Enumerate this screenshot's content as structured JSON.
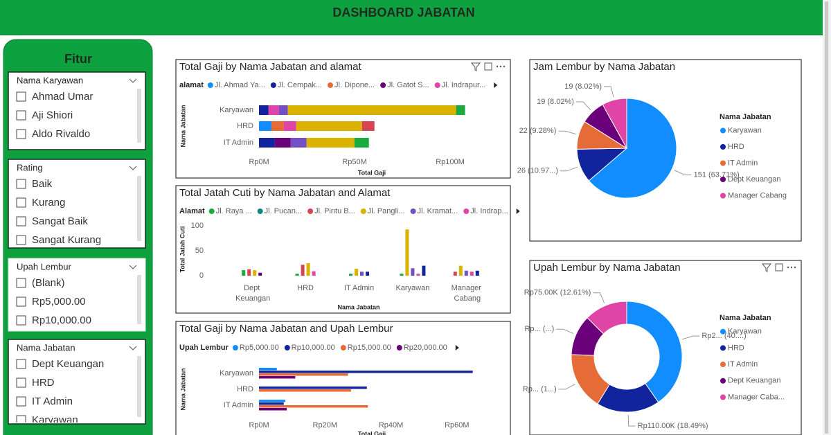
{
  "header": {
    "title": "DASHBOARD JABATAN"
  },
  "sidebar": {
    "title": "Fitur",
    "slicers": [
      {
        "title": "Nama Karyawan",
        "items": [
          "Ahmad Umar",
          "Aji Shiori",
          "Aldo Rivaldo"
        ]
      },
      {
        "title": "Rating",
        "items": [
          "Baik",
          "Kurang",
          "Sangat Baik",
          "Sangat Kurang"
        ]
      },
      {
        "title": "Upah Lembur",
        "items": [
          "(Blank)",
          "Rp5,000.00",
          "Rp10,000.00"
        ]
      },
      {
        "title": "Nama Jabatan",
        "items": [
          "Dept Keuangan",
          "HRD",
          "IT Admin",
          "Karyawan"
        ]
      }
    ]
  },
  "chart_data": [
    {
      "type": "bar",
      "orientation": "horizontal",
      "stacked": true,
      "title": "Total Gaji by Nama Jabatan and alamat",
      "legend_title": "alamat",
      "x_label": "Total Gaji",
      "y_label": "Nama Jabatan",
      "categories": [
        "Karyawan",
        "HRD",
        "IT Admin"
      ],
      "series": [
        {
          "name": "Jl. Ahmad Ya...",
          "color": "#118dff",
          "values": [
            null,
            6500000,
            null
          ]
        },
        {
          "name": "Jl. Cempak...",
          "color": "#12239e",
          "values": [
            5000000,
            null,
            8300000
          ]
        },
        {
          "name": "Jl. Dipone...",
          "color": "#e66c37",
          "values": [
            null,
            6500000,
            null
          ]
        },
        {
          "name": "Jl. Gatot S...",
          "color": "#6b007b",
          "values": [
            null,
            null,
            8300000
          ]
        },
        {
          "name": "Jl. Indrapur...",
          "color": "#e044a7",
          "values": [
            5400000,
            6500000,
            null
          ]
        },
        {
          "name": null,
          "color": "#744ec2",
          "values": [
            4700000,
            null,
            8300000
          ]
        },
        {
          "name": null,
          "color": "#d9b300",
          "values": [
            88000000,
            34400000,
            25000000
          ]
        },
        {
          "name": null,
          "color": "#d64550",
          "values": [
            null,
            6500000,
            null
          ]
        },
        {
          "name": null,
          "color": "#1aab40",
          "values": [
            4700000,
            null,
            7600000
          ]
        }
      ],
      "xlim": [
        0,
        125000000
      ],
      "xticks": [
        {
          "value": 0,
          "label": "Rp0M"
        },
        {
          "value": 50000000,
          "label": "Rp50M"
        },
        {
          "value": 100000000,
          "label": "Rp100M"
        }
      ]
    },
    {
      "type": "bar",
      "orientation": "vertical",
      "stacked": false,
      "title": "Total Jatah Cuti by Nama Jabatan and Alamat",
      "legend_title": "Alamat",
      "x_label": "Nama Jabatan",
      "y_label": "Total Jatah Cuti",
      "categories": [
        "Dept Keuangan",
        "HRD",
        "IT Admin",
        "Karyawan",
        "Manager Cabang"
      ],
      "series": [
        {
          "name": "Jl. Raya ...",
          "color": "#1aab40",
          "values": [
            11,
            4,
            4,
            4,
            null
          ]
        },
        {
          "name": "Jl. Pucan...",
          "color": "#15857f",
          "values": [
            null,
            null,
            null,
            null,
            null
          ]
        },
        {
          "name": "Jl. Pintu B...",
          "color": "#d64550",
          "values": [
            13,
            22,
            null,
            null,
            8
          ]
        },
        {
          "name": "Jl. Pangli...",
          "color": "#d9b300",
          "values": [
            11,
            25,
            14,
            93,
            20
          ]
        },
        {
          "name": "Jl. Kramat...",
          "color": "#744ec2",
          "values": [
            null,
            null,
            8,
            15,
            10
          ]
        },
        {
          "name": "Jl. Indrap...",
          "color": "#e044a7",
          "values": [
            null,
            9,
            null,
            4,
            8
          ]
        },
        {
          "name": null,
          "color": "#12239e",
          "values": [
            null,
            null,
            8,
            20,
            10
          ]
        },
        {
          "name": null,
          "color": "#6b007b",
          "values": [
            6,
            null,
            null,
            null,
            null
          ]
        }
      ],
      "ylim": [
        0,
        110
      ],
      "yticks": [
        0,
        50,
        100
      ]
    },
    {
      "type": "bar",
      "orientation": "horizontal",
      "stacked": false,
      "title": "Total Gaji by Nama Jabatan and Upah Lembur",
      "legend_title": "Upah Lembur",
      "x_label": "Total Gaji",
      "y_label": "Nama Jabatan",
      "categories": [
        "Karyawan",
        "HRD",
        "IT Admin"
      ],
      "series": [
        {
          "name": "Rp5,000.00",
          "color": "#118dff",
          "values": [
            5400000,
            null,
            8000000
          ]
        },
        {
          "name": "Rp10,000.00",
          "color": "#12239e",
          "values": [
            64800000,
            32700000,
            7500000
          ]
        },
        {
          "name": "Rp15,000.00",
          "color": "#e66c37",
          "values": [
            27000000,
            27900000,
            33000000
          ]
        },
        {
          "name": "Rp20,000.00",
          "color": "#6b007b",
          "values": [
            11000000,
            null,
            8400000
          ]
        }
      ],
      "xlim": [
        0,
        72000000
      ],
      "xticks": [
        {
          "value": 0,
          "label": "Rp0M"
        },
        {
          "value": 20000000,
          "label": "Rp20M"
        },
        {
          "value": 40000000,
          "label": "Rp40M"
        },
        {
          "value": 60000000,
          "label": "Rp60M"
        }
      ]
    },
    {
      "type": "pie",
      "title": "Jam Lembur by Nama Jabatan",
      "legend_title": "Nama Jabatan",
      "categories": [
        "Karyawan",
        "HRD",
        "IT Admin",
        "Dept Keuangan",
        "Manager Cabang"
      ],
      "colors": [
        "#118dff",
        "#12239e",
        "#e66c37",
        "#6b007b",
        "#e044a7"
      ],
      "values": [
        151,
        26,
        22,
        19,
        19
      ],
      "value_labels": [
        "151 (63.71%)",
        "26 (10.97...)",
        "22 (9.28%)",
        "19 (8.02%)",
        "19 (8.02%)"
      ]
    },
    {
      "type": "donut",
      "title": "Upah Lembur by Nama Jabatan",
      "legend_title": "Nama Jabatan",
      "categories": [
        "Karyawan",
        "HRD",
        "IT Admin",
        "Dept Keuangan",
        "Manager Caba..."
      ],
      "colors": [
        "#118dff",
        "#12239e",
        "#e66c37",
        "#6b007b",
        "#e044a7"
      ],
      "values": [
        240000,
        110000,
        100000,
        70000,
        75000
      ],
      "value_labels": [
        "Rp2... (40....)",
        "Rp110.00K (18.49%)",
        "Rp... (1...)",
        "Rp... (...)",
        "Rp75.00K (12.61%)"
      ]
    }
  ]
}
